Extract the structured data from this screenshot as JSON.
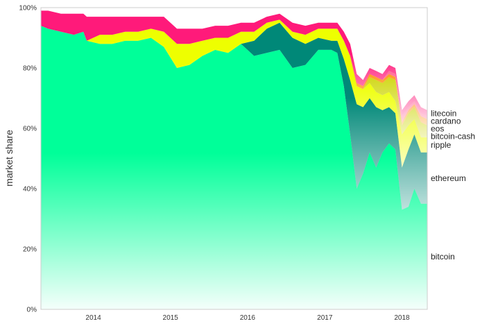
{
  "chart_data": {
    "type": "area",
    "stacked": true,
    "normalized": true,
    "title": "",
    "xlabel": "",
    "ylabel": "market share",
    "ylim": [
      0,
      100
    ],
    "y_ticks": [
      "0%",
      "20%",
      "40%",
      "60%",
      "80%",
      "100%"
    ],
    "x_ticks": [
      "2014",
      "2015",
      "2016",
      "2017",
      "2018"
    ],
    "xlim": [
      "2013-04-28",
      "2018-05-01"
    ],
    "grid": false,
    "legend": "labels at right end of each band",
    "dates": [
      "2013-04-28",
      "2013-06-01",
      "2013-08-01",
      "2013-10-01",
      "2013-11-15",
      "2013-12-01",
      "2014-02-01",
      "2014-04-01",
      "2014-06-01",
      "2014-08-01",
      "2014-10-01",
      "2014-12-01",
      "2015-02-01",
      "2015-04-01",
      "2015-06-01",
      "2015-08-01",
      "2015-10-01",
      "2015-12-01",
      "2016-02-01",
      "2016-04-01",
      "2016-06-01",
      "2016-08-01",
      "2016-10-01",
      "2016-12-01",
      "2017-02-01",
      "2017-03-01",
      "2017-04-01",
      "2017-05-01",
      "2017-06-01",
      "2017-07-01",
      "2017-08-01",
      "2017-09-01",
      "2017-10-01",
      "2017-11-01",
      "2017-12-01",
      "2018-01-01",
      "2018-02-01",
      "2018-03-01",
      "2018-04-01",
      "2018-05-01"
    ],
    "series": [
      {
        "name": "bitcoin",
        "color": "#00ff99",
        "values": [
          94,
          93,
          92,
          91,
          92,
          89,
          88,
          88,
          89,
          89,
          90,
          87,
          80,
          81,
          84,
          86,
          85,
          88,
          84,
          85,
          86,
          80,
          81,
          86,
          86,
          85,
          74,
          58,
          40,
          45,
          52,
          47,
          52,
          55,
          53,
          33,
          34,
          40,
          35,
          35
        ]
      },
      {
        "name": "ethereum",
        "color": "#008878",
        "values": [
          0,
          0,
          0,
          0,
          0,
          0,
          0,
          0,
          0,
          0,
          0,
          0,
          0,
          0,
          0,
          0,
          0,
          0,
          5,
          8,
          9,
          10,
          7,
          4,
          3,
          4,
          9,
          18,
          28,
          22,
          18,
          20,
          14,
          12,
          12,
          14,
          19,
          18,
          17,
          17
        ]
      },
      {
        "name": "ripple",
        "color": "#eeff00",
        "values": [
          0,
          0,
          0,
          0,
          0,
          0,
          3,
          3,
          3,
          3,
          3,
          5,
          8,
          7,
          5,
          4,
          5,
          4,
          3,
          2,
          1,
          2,
          3,
          3,
          4,
          4,
          6,
          8,
          6,
          6,
          5,
          5,
          5,
          5,
          4,
          11,
          8,
          5,
          5,
          5
        ]
      },
      {
        "name": "bitcoin-cash",
        "color": "#ccd400",
        "values": [
          0,
          0,
          0,
          0,
          0,
          0,
          0,
          0,
          0,
          0,
          0,
          0,
          0,
          0,
          0,
          0,
          0,
          0,
          0,
          0,
          0,
          0,
          0,
          0,
          0,
          0,
          0,
          0,
          0,
          0,
          2,
          4,
          4,
          5,
          7,
          3,
          4,
          4,
          5,
          4
        ]
      },
      {
        "name": "eos",
        "color": "#ff8a00",
        "values": [
          0,
          0,
          0,
          0,
          0,
          0,
          0,
          0,
          0,
          0,
          0,
          0,
          0,
          0,
          0,
          0,
          0,
          0,
          0,
          0,
          0,
          0,
          0,
          0,
          0,
          0,
          0,
          0,
          1,
          1,
          1,
          1,
          1,
          1,
          1,
          1,
          1,
          1,
          2,
          2
        ]
      },
      {
        "name": "cardano",
        "color": "#ff5a8a",
        "values": [
          0,
          0,
          0,
          0,
          0,
          0,
          0,
          0,
          0,
          0,
          0,
          0,
          0,
          0,
          0,
          0,
          0,
          0,
          0,
          0,
          0,
          0,
          0,
          0,
          0,
          0,
          0,
          0,
          0,
          0,
          0,
          0,
          0,
          1,
          1,
          2,
          1,
          1,
          1,
          1
        ]
      },
      {
        "name": "litecoin",
        "color": "#ff1a7a",
        "values": [
          5,
          6,
          6,
          7,
          6,
          8,
          6,
          6,
          5,
          5,
          4,
          5,
          5,
          5,
          4,
          4,
          4,
          3,
          3,
          2,
          2,
          3,
          3,
          2,
          2,
          2,
          3,
          4,
          3,
          2,
          2,
          2,
          2,
          2,
          2,
          2,
          2,
          2,
          2,
          2
        ]
      }
    ]
  }
}
